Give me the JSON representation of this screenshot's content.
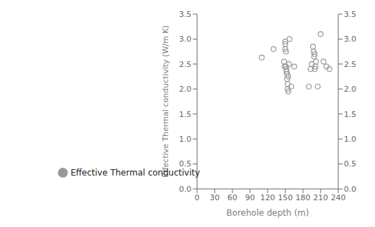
{
  "chart_data": {
    "type": "scatter",
    "x": [
      110,
      130,
      148,
      149,
      150,
      150,
      150,
      151,
      151,
      152,
      152,
      153,
      153,
      154,
      154,
      155,
      155,
      156,
      157,
      160,
      165,
      190,
      193,
      195,
      197,
      198,
      199,
      200,
      200,
      201,
      202,
      205,
      210,
      215,
      220,
      225
    ],
    "series": [
      {
        "name": "Effective Thermal conductivity",
        "color": "#999999",
        "values": [
          2.63,
          2.8,
          2.55,
          2.45,
          2.95,
          2.9,
          2.8,
          2.75,
          2.45,
          2.4,
          2.35,
          2.3,
          2.2,
          2.1,
          2.0,
          1.95,
          2.25,
          2.5,
          3.0,
          2.05,
          2.45,
          2.05,
          2.4,
          2.5,
          2.85,
          2.75,
          2.65,
          2.7,
          2.4,
          2.45,
          2.55,
          2.05,
          3.1,
          2.55,
          2.45,
          2.4
        ]
      }
    ],
    "xlabel": "Borehole depth (m)",
    "ylabel": "Effective Thermal conductivity (W/m K)",
    "xlim": [
      0,
      240
    ],
    "xticks": [
      0,
      30,
      60,
      90,
      120,
      150,
      180,
      210,
      240
    ],
    "ylim": [
      0.0,
      3.5
    ],
    "yticks": [
      {
        "value": 0,
        "label": "0.0"
      },
      0.5,
      {
        "value": 1,
        "label": "1.0"
      },
      1.5,
      {
        "value": 2,
        "label": "2.0"
      },
      2.5,
      {
        "value": 3,
        "label": "3.0"
      },
      3.5
    ],
    "y2lim": [
      0.0,
      3.5
    ],
    "y2ticks": [
      {
        "value": 0,
        "label": "0.0"
      },
      0.5,
      {
        "value": 1,
        "label": "1.0"
      },
      1.5,
      {
        "value": 2,
        "label": "2.0"
      },
      2.5,
      {
        "value": 3,
        "label": "3.0"
      },
      3.5
    ],
    "legend": "lower left",
    "grid": false
  }
}
